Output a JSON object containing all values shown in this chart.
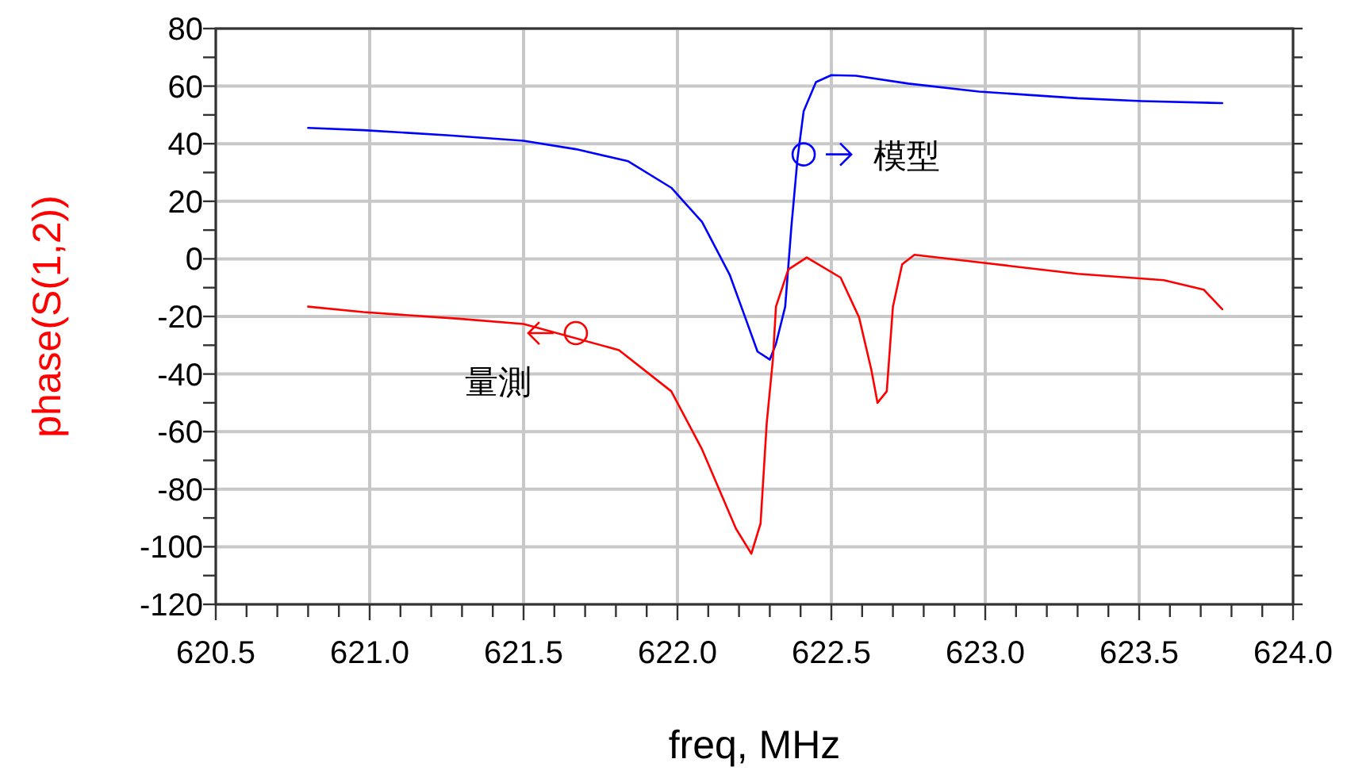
{
  "chart_data": {
    "type": "line",
    "xlabel": "freq, MHz",
    "ylabel": "phase(S(1,2))",
    "xlim": [
      620.5,
      624.0
    ],
    "xticks": [
      {
        "value": 620.5,
        "label": "620.5"
      },
      {
        "value": 620.6,
        "label": null
      },
      {
        "value": 620.7,
        "label": null
      },
      {
        "value": 620.8,
        "label": null
      },
      {
        "value": 620.9,
        "label": null
      },
      {
        "value": 621.0,
        "label": "621.0"
      },
      {
        "value": 621.1,
        "label": null
      },
      {
        "value": 621.2,
        "label": null
      },
      {
        "value": 621.3,
        "label": null
      },
      {
        "value": 621.4,
        "label": null
      },
      {
        "value": 621.5,
        "label": "621.5"
      },
      {
        "value": 621.6,
        "label": null
      },
      {
        "value": 621.7,
        "label": null
      },
      {
        "value": 621.8,
        "label": null
      },
      {
        "value": 621.9,
        "label": null
      },
      {
        "value": 622.0,
        "label": "622.0"
      },
      {
        "value": 622.1,
        "label": null
      },
      {
        "value": 622.2,
        "label": null
      },
      {
        "value": 622.3,
        "label": null
      },
      {
        "value": 622.4,
        "label": null
      },
      {
        "value": 622.5,
        "label": "622.5"
      },
      {
        "value": 622.6,
        "label": null
      },
      {
        "value": 622.7,
        "label": null
      },
      {
        "value": 622.8,
        "label": null
      },
      {
        "value": 622.9,
        "label": null
      },
      {
        "value": 623.0,
        "label": "623.0"
      },
      {
        "value": 623.1,
        "label": null
      },
      {
        "value": 623.2,
        "label": null
      },
      {
        "value": 623.3,
        "label": null
      },
      {
        "value": 623.4,
        "label": null
      },
      {
        "value": 623.5,
        "label": "623.5"
      },
      {
        "value": 623.6,
        "label": null
      },
      {
        "value": 623.7,
        "label": null
      },
      {
        "value": 623.8,
        "label": null
      },
      {
        "value": 623.9,
        "label": null
      },
      {
        "value": 624.0,
        "label": "624.0"
      }
    ],
    "ylim": [
      -120,
      80
    ],
    "yticks": [
      -120,
      {
        "value": -110,
        "label": null
      },
      -100,
      {
        "value": -90,
        "label": null
      },
      -80,
      {
        "value": -70,
        "label": null
      },
      -60,
      {
        "value": -50,
        "label": null
      },
      -40,
      {
        "value": -30,
        "label": null
      },
      -20,
      {
        "value": -10,
        "label": null
      },
      0,
      {
        "value": 10,
        "label": null
      },
      20,
      {
        "value": 30,
        "label": null
      },
      40,
      {
        "value": 50,
        "label": null
      },
      60,
      {
        "value": 70,
        "label": null
      },
      80
    ],
    "grid": true,
    "line_style": "solid",
    "series": [
      {
        "color": "#0000ff",
        "x": [
          620.8,
          620.98,
          621.26,
          621.5,
          621.67,
          621.84,
          621.98,
          622.08,
          622.17,
          622.22,
          622.26,
          622.3,
          622.32,
          622.35,
          622.37,
          622.39,
          622.41,
          622.45,
          622.5,
          622.58,
          622.75,
          622.98,
          623.3,
          623.51,
          623.77
        ],
        "values": [
          45.5,
          44.7,
          42.9,
          41.0,
          38.1,
          33.9,
          24.7,
          12.8,
          -5.6,
          -20.3,
          -32.2,
          -35.0,
          -29.5,
          -16.6,
          11.0,
          34.8,
          51.3,
          61.4,
          63.8,
          63.6,
          60.9,
          58.1,
          55.8,
          54.8,
          54.1
        ]
      },
      {
        "color": "#ff0000",
        "x": [
          620.8,
          620.98,
          621.29,
          621.5,
          621.81,
          621.98,
          622.08,
          622.19,
          622.24,
          622.27,
          622.29,
          622.31,
          622.32,
          622.36,
          622.42,
          622.53,
          622.59,
          622.63,
          622.65,
          622.68,
          622.7,
          622.73,
          622.77,
          622.98,
          623.3,
          623.58,
          623.71,
          623.77
        ],
        "values": [
          -16.6,
          -18.5,
          -20.8,
          -22.6,
          -31.7,
          -46.0,
          -66.2,
          -93.7,
          -102.4,
          -91.9,
          -57.0,
          -35.0,
          -16.6,
          -3.7,
          0.5,
          -6.5,
          -20.3,
          -38.6,
          -50.0,
          -46.0,
          -16.6,
          -1.9,
          1.4,
          -1.2,
          -5.2,
          -7.4,
          -10.7,
          -17.5
        ]
      }
    ],
    "annotations": [
      {
        "text": "模型",
        "x": 622.41,
        "y": 36.3
      },
      {
        "text": "量測",
        "x": 621.67,
        "y": -25.8
      }
    ]
  }
}
